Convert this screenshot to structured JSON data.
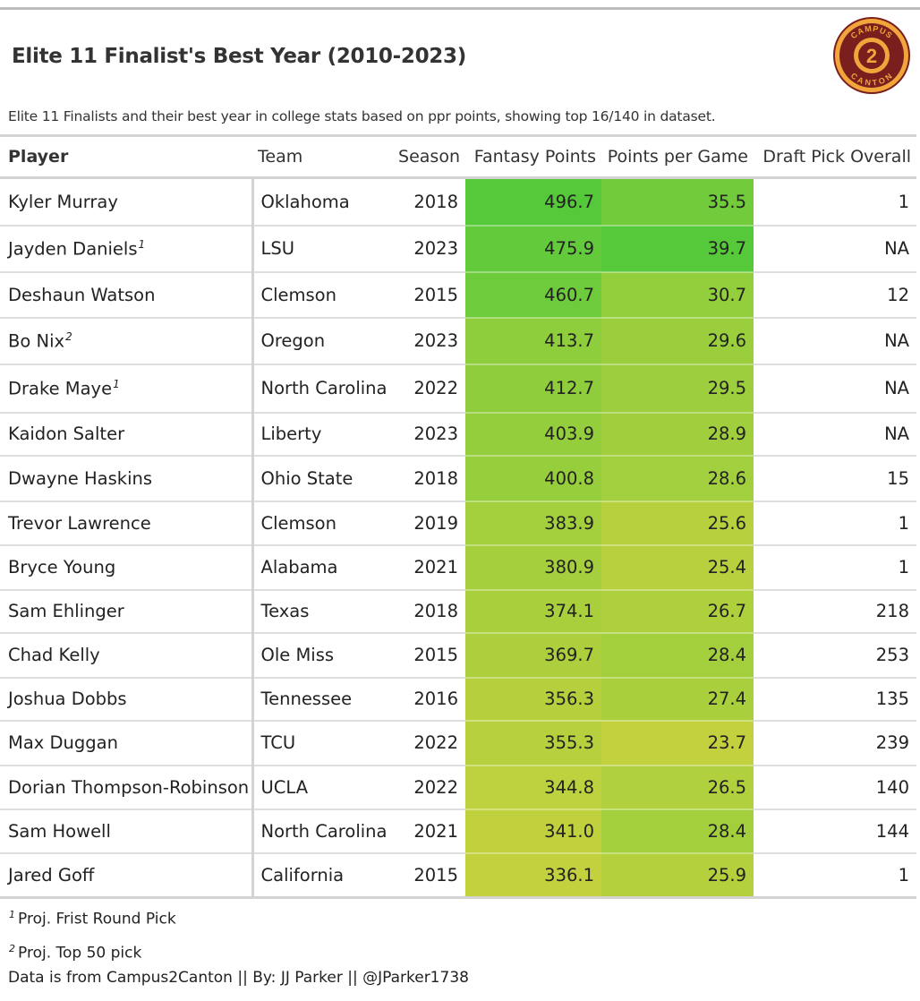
{
  "header": {
    "title": "Elite 11 Finalist's Best Year (2010-2023)",
    "subtitle": "Elite 11 Finalists and their best year in college stats based on ppr points, showing top 16/140 in dataset."
  },
  "logo": {
    "name": "campus2canton-logo",
    "text_top": "CAMPUS",
    "text_bottom": "CANTON",
    "numeral": "2",
    "colors": {
      "ring": "#f2a53a",
      "fill": "#7a1e1e",
      "inner": "#f2a53a"
    }
  },
  "colors": {
    "grad_low": "#c4d13e",
    "grad_high": "#55c93a"
  },
  "chart_data": {
    "type": "table",
    "columns": [
      "Player",
      "Team",
      "Season",
      "Fantasy Points",
      "Points per Game",
      "Draft Pick Overall"
    ],
    "rows": [
      {
        "player": "Kyler Murray",
        "note": "",
        "team": "Oklahoma",
        "season": "2018",
        "fantasy_points": 496.7,
        "fantasy_display": "496.7",
        "ppg": 35.5,
        "ppg_display": "35.5",
        "draft_pick": "1"
      },
      {
        "player": "Jayden Daniels",
        "note": "1",
        "team": "LSU",
        "season": "2023",
        "fantasy_points": 475.9,
        "fantasy_display": "475.9",
        "ppg": 39.7,
        "ppg_display": "39.7",
        "draft_pick": "NA"
      },
      {
        "player": "Deshaun Watson",
        "note": "",
        "team": "Clemson",
        "season": "2015",
        "fantasy_points": 460.7,
        "fantasy_display": "460.7",
        "ppg": 30.7,
        "ppg_display": "30.7",
        "draft_pick": "12"
      },
      {
        "player": "Bo Nix",
        "note": "2",
        "team": "Oregon",
        "season": "2023",
        "fantasy_points": 413.7,
        "fantasy_display": "413.7",
        "ppg": 29.6,
        "ppg_display": "29.6",
        "draft_pick": "NA"
      },
      {
        "player": "Drake Maye",
        "note": "1",
        "team": "North Carolina",
        "season": "2022",
        "fantasy_points": 412.7,
        "fantasy_display": "412.7",
        "ppg": 29.5,
        "ppg_display": "29.5",
        "draft_pick": "NA"
      },
      {
        "player": "Kaidon Salter",
        "note": "",
        "team": "Liberty",
        "season": "2023",
        "fantasy_points": 403.9,
        "fantasy_display": "403.9",
        "ppg": 28.9,
        "ppg_display": "28.9",
        "draft_pick": "NA"
      },
      {
        "player": "Dwayne Haskins",
        "note": "",
        "team": "Ohio State",
        "season": "2018",
        "fantasy_points": 400.8,
        "fantasy_display": "400.8",
        "ppg": 28.6,
        "ppg_display": "28.6",
        "draft_pick": "15"
      },
      {
        "player": "Trevor Lawrence",
        "note": "",
        "team": "Clemson",
        "season": "2019",
        "fantasy_points": 383.9,
        "fantasy_display": "383.9",
        "ppg": 25.6,
        "ppg_display": "25.6",
        "draft_pick": "1"
      },
      {
        "player": "Bryce Young",
        "note": "",
        "team": "Alabama",
        "season": "2021",
        "fantasy_points": 380.9,
        "fantasy_display": "380.9",
        "ppg": 25.4,
        "ppg_display": "25.4",
        "draft_pick": "1"
      },
      {
        "player": "Sam Ehlinger",
        "note": "",
        "team": "Texas",
        "season": "2018",
        "fantasy_points": 374.1,
        "fantasy_display": "374.1",
        "ppg": 26.7,
        "ppg_display": "26.7",
        "draft_pick": "218"
      },
      {
        "player": "Chad Kelly",
        "note": "",
        "team": "Ole Miss",
        "season": "2015",
        "fantasy_points": 369.7,
        "fantasy_display": "369.7",
        "ppg": 28.4,
        "ppg_display": "28.4",
        "draft_pick": "253"
      },
      {
        "player": "Joshua Dobbs",
        "note": "",
        "team": "Tennessee",
        "season": "2016",
        "fantasy_points": 356.3,
        "fantasy_display": "356.3",
        "ppg": 27.4,
        "ppg_display": "27.4",
        "draft_pick": "135"
      },
      {
        "player": "Max Duggan",
        "note": "",
        "team": "TCU",
        "season": "2022",
        "fantasy_points": 355.3,
        "fantasy_display": "355.3",
        "ppg": 23.7,
        "ppg_display": "23.7",
        "draft_pick": "239"
      },
      {
        "player": "Dorian Thompson-Robinson",
        "note": "",
        "team": "UCLA",
        "season": "2022",
        "fantasy_points": 344.8,
        "fantasy_display": "344.8",
        "ppg": 26.5,
        "ppg_display": "26.5",
        "draft_pick": "140"
      },
      {
        "player": "Sam Howell",
        "note": "",
        "team": "North Carolina",
        "season": "2021",
        "fantasy_points": 341.0,
        "fantasy_display": "341.0",
        "ppg": 28.4,
        "ppg_display": "28.4",
        "draft_pick": "144"
      },
      {
        "player": "Jared Goff",
        "note": "",
        "team": "California",
        "season": "2015",
        "fantasy_points": 336.1,
        "fantasy_display": "336.1",
        "ppg": 25.9,
        "ppg_display": "25.9",
        "draft_pick": "1"
      }
    ]
  },
  "footnotes": [
    {
      "mark": "1",
      "text": "Proj. Frist Round Pick"
    },
    {
      "mark": "2",
      "text": "Proj. Top 50 pick"
    }
  ],
  "source": "Data is from Campus2Canton || By: JJ Parker || @JParker1738"
}
